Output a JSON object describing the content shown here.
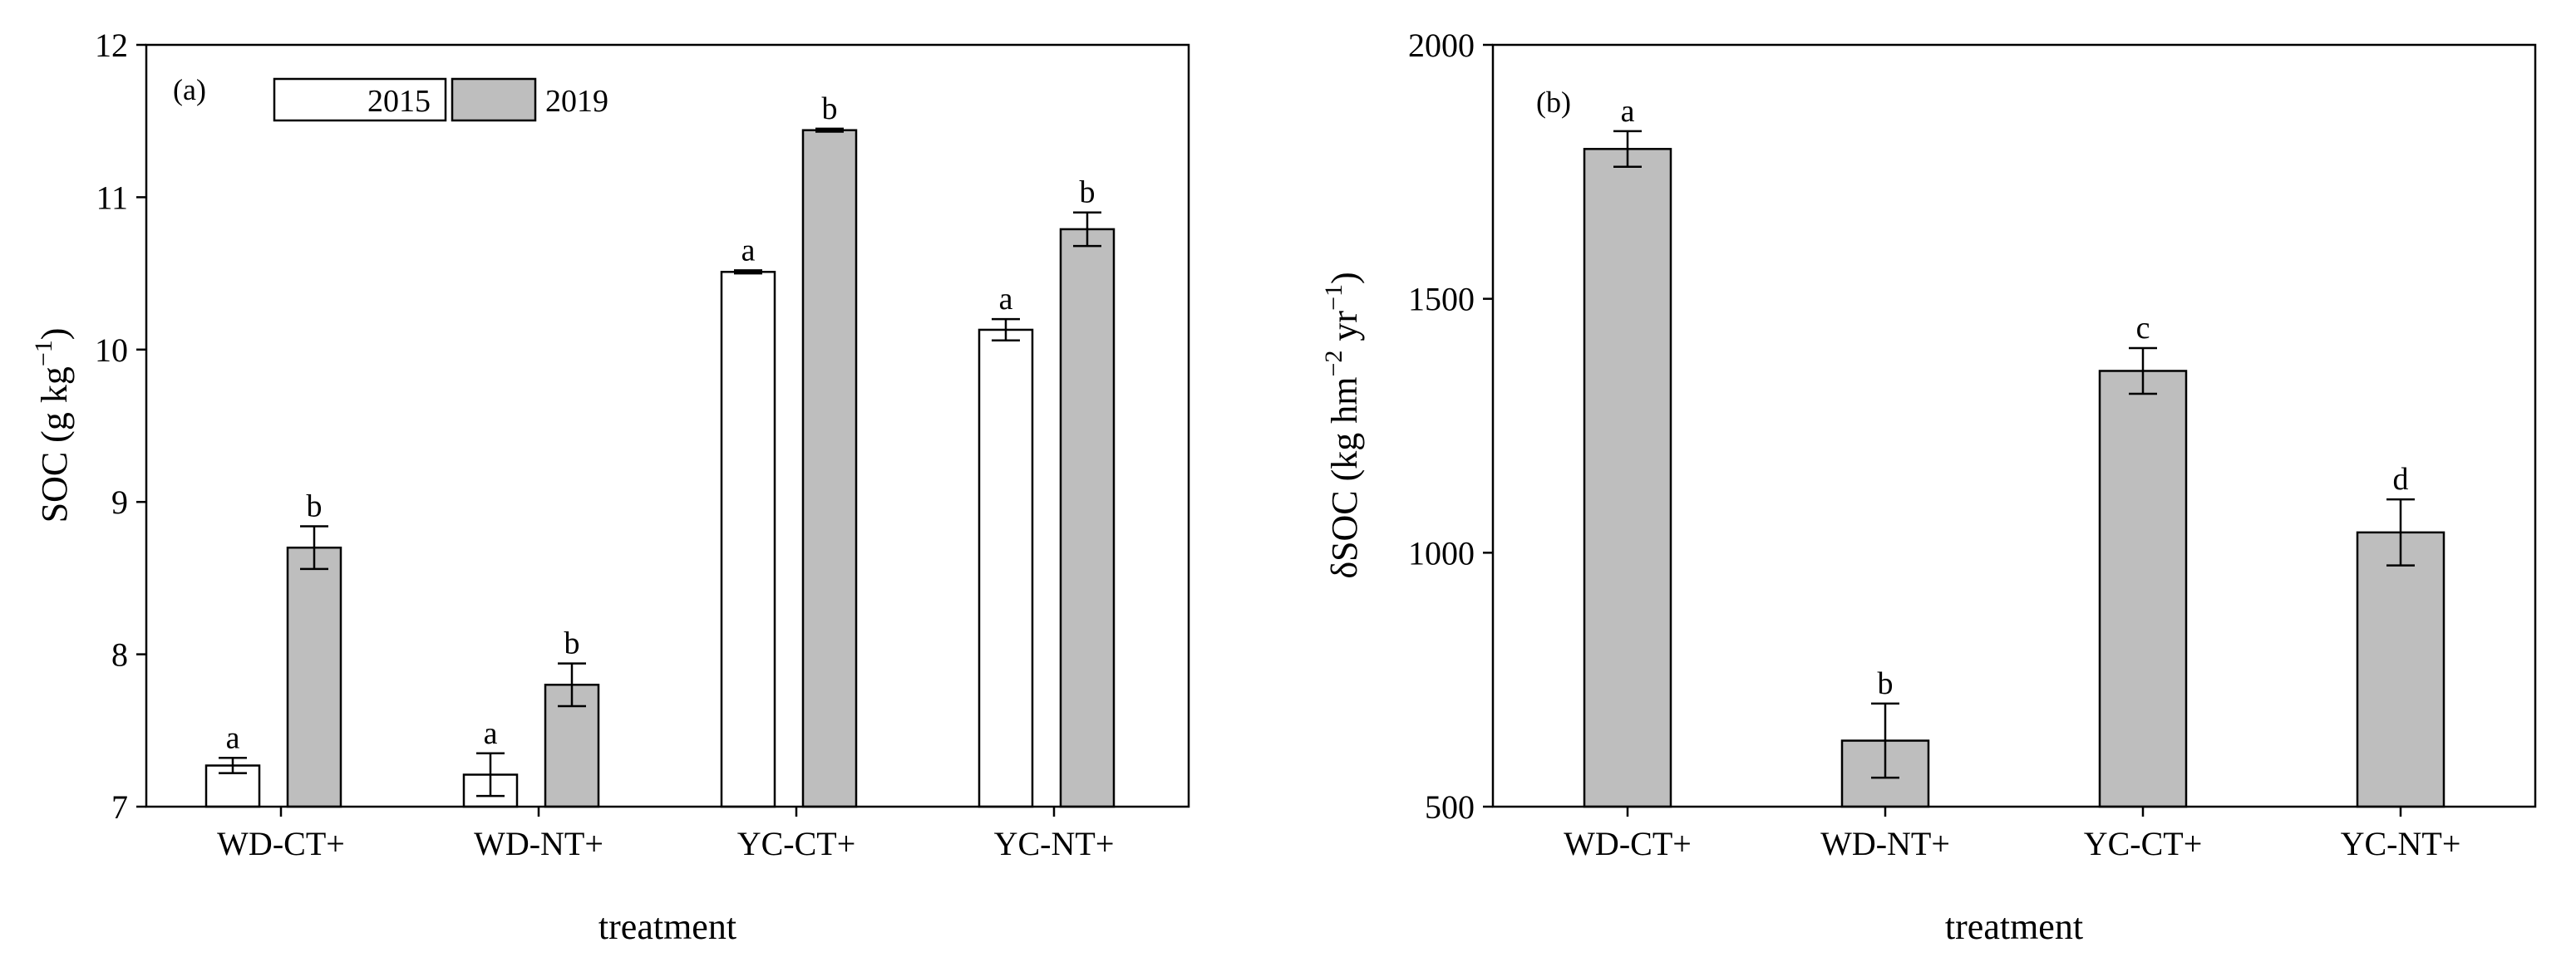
{
  "chart_data": [
    {
      "panel": "(a)",
      "type": "bar",
      "xlabel": "treatment",
      "ylabel": "SOC (g kg−1)",
      "ylabel_main": "SOC (g kg",
      "ylabel_sup": "−1",
      "ylabel_end": ")",
      "ylim": [
        7,
        12
      ],
      "yticks": [
        7,
        8,
        9,
        10,
        11,
        12
      ],
      "categories": [
        "WD-CT+",
        "WD-NT+",
        "YC-CT+",
        "YC-NT+"
      ],
      "series": [
        {
          "name": "2015",
          "color": "#ffffff",
          "values": [
            7.27,
            7.21,
            10.51,
            10.13
          ],
          "errors": [
            0.05,
            0.14,
            0.01,
            0.07
          ],
          "letters": [
            "a",
            "a",
            "a",
            "a"
          ]
        },
        {
          "name": "2019",
          "color": "#bebebe",
          "values": [
            8.7,
            7.8,
            11.44,
            10.79
          ],
          "errors": [
            0.14,
            0.14,
            0.01,
            0.11
          ],
          "letters": [
            "b",
            "b",
            "b",
            "b"
          ]
        }
      ],
      "legend": "top-left"
    },
    {
      "panel": "(b)",
      "type": "bar",
      "xlabel": "treatment",
      "ylabel": "δSOC (kg hm−2 yr−1)",
      "ylabel_main": "δSOC (kg hm",
      "ylabel_sup1": "−2",
      "ylabel_mid": " yr",
      "ylabel_sup2": "−1",
      "ylabel_end": ")",
      "ylim": [
        500,
        2000
      ],
      "yticks": [
        500,
        1000,
        1500,
        2000
      ],
      "categories": [
        "WD-CT+",
        "WD-NT+",
        "YC-CT+",
        "YC-NT+"
      ],
      "series": [
        {
          "name": "δSOC",
          "color": "#bebebe",
          "values": [
            1795,
            630,
            1358,
            1040
          ],
          "errors": [
            35,
            73,
            45,
            65
          ],
          "letters": [
            "a",
            "b",
            "c",
            "d"
          ]
        }
      ]
    }
  ]
}
